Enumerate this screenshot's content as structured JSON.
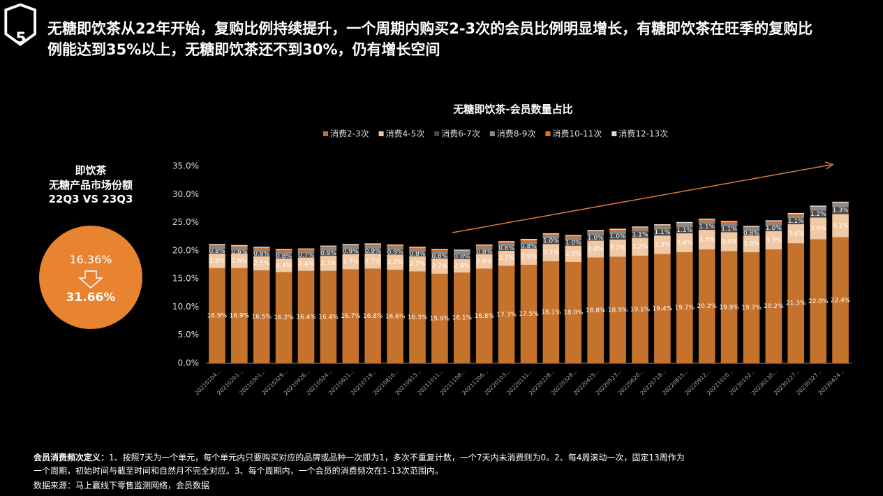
{
  "header": {
    "title": "无糖即饮茶从22年开始，复购比例持续提升，一个周期内购买2-3次的会员比例明显增长，有糖即饮茶在旺季的复购比例能达到35%以上，无糖即饮茶还不到30%，仍有增长空间"
  },
  "side": {
    "line1": "即饮茶",
    "line2": "无糖产品市场份额",
    "line3": "22Q3 VS 23Q3",
    "from": "16.36%",
    "to": "31.66%"
  },
  "chart_data": {
    "type": "stacked_bar",
    "title": "无糖即饮茶-会员数量占比",
    "categories": [
      "20210104...",
      "20210201...",
      "20210301...",
      "20210329...",
      "20210426...",
      "20210524...",
      "20210621...",
      "20210719...",
      "20210816...",
      "20210913...",
      "20211011...",
      "20211108...",
      "20211206...",
      "20220103...",
      "20220131...",
      "20220228...",
      "20220328...",
      "20220425...",
      "20220523...",
      "20220620...",
      "20220718...",
      "20220815...",
      "20220912...",
      "20221010...",
      "20230102...",
      "20230130...",
      "20230227...",
      "20230327...",
      "20230424..."
    ],
    "series": [
      {
        "name": "消费2-3次",
        "color": "#c5722d",
        "values": [
          16.9,
          16.9,
          16.5,
          16.2,
          16.4,
          16.4,
          16.7,
          16.8,
          16.6,
          16.3,
          15.9,
          16.1,
          16.8,
          17.3,
          17.5,
          18.1,
          18.0,
          18.8,
          18.9,
          19.1,
          19.4,
          19.7,
          20.2,
          19.9,
          19.7,
          20.2,
          21.3,
          22.0,
          22.4
        ],
        "value_labels": [
          "16.9%",
          "16.9%",
          "16.5%",
          "16.2%",
          "16.4%",
          "16.4%",
          "16.7%",
          "16.8%",
          "16.6%",
          "16.3%",
          "15.9%",
          "16.1%",
          "16.8%",
          "17.3%",
          "17.5%",
          "18.1%",
          "18.0%",
          "18.8%",
          "18.9%",
          "19.1%",
          "19.4%",
          "19.7%",
          "20.2%",
          "19.9%",
          "19.7%",
          "20.2%",
          "21.3%",
          "22.0%",
          "22.4%"
        ]
      },
      {
        "name": "消费4-5次",
        "color": "#f2c9a5",
        "values": [
          2.6,
          2.6,
          2.5,
          2.4,
          2.4,
          2.7,
          2.7,
          2.7,
          2.7,
          2.7,
          2.7,
          2.4,
          2.6,
          2.7,
          2.9,
          3.1,
          2.9,
          3.0,
          3.1,
          3.2,
          3.3,
          3.4,
          3.5,
          3.4,
          3.0,
          3.3,
          3.4,
          3.9,
          4.1
        ],
        "value_labels": [
          "2.6%",
          "2.6%",
          "2.5%",
          "2.4%",
          "2.4%",
          "2.7%",
          "2.7%",
          "2.7%",
          "2.7%",
          "2.7%",
          "2.7%",
          "2.4%",
          "2.6%",
          "2.7%",
          "2.9%",
          "3.1%",
          "2.9%",
          "3.0%",
          "3.1%",
          "3.2%",
          "3.3%",
          "3.4%",
          "3.5%",
          "3.4%",
          "3.0%",
          "3.3%",
          "3.4%",
          "3.9%",
          "4.1%"
        ]
      },
      {
        "name": "消费6-7次",
        "color": "#4a4a4a",
        "values": [
          0.8,
          0.6,
          0.8,
          0.8,
          0.7,
          0.9,
          0.9,
          0.9,
          0.9,
          0.8,
          0.8,
          0.8,
          0.8,
          0.8,
          0.8,
          1.0,
          1.0,
          1.0,
          1.0,
          1.1,
          1.1,
          1.1,
          1.1,
          1.1,
          0.8,
          1.0,
          1.1,
          1.2,
          1.3
        ],
        "value_labels": [
          "0.8%",
          "0.6%",
          "0.8%",
          "0.8%",
          "0.7%",
          "0.9%",
          "0.9%",
          "0.9%",
          "0.9%",
          "0.8%",
          "0.8%",
          "0.8%",
          "0.8%",
          "0.8%",
          "0.8%",
          "1.0%",
          "1.0%",
          "1.0%",
          "1.0%",
          "1.1%",
          "1.1%",
          "1.1%",
          "1.1%",
          "1.1%",
          "0.8%",
          "1.0%",
          "1.1%",
          "1.2%",
          "1.3%"
        ]
      },
      {
        "name": "消费8-9次",
        "color": "#8a8a8a",
        "values": [
          0.5,
          0.5,
          0.5,
          0.5,
          0.5,
          0.5,
          0.5,
          0.5,
          0.5,
          0.5,
          0.5,
          0.5,
          0.5,
          0.5,
          0.5,
          0.5,
          0.5,
          0.5,
          0.5,
          0.5,
          0.5,
          0.5,
          0.5,
          0.5,
          0.5,
          0.5,
          0.5,
          0.5,
          0.5
        ]
      },
      {
        "name": "消费10-11次",
        "color": "#e8701f",
        "values": [
          0.2,
          0.2,
          0.2,
          0.2,
          0.2,
          0.2,
          0.2,
          0.2,
          0.2,
          0.2,
          0.2,
          0.2,
          0.2,
          0.2,
          0.2,
          0.2,
          0.2,
          0.2,
          0.2,
          0.2,
          0.2,
          0.2,
          0.2,
          0.2,
          0.2,
          0.2,
          0.2,
          0.2,
          0.2
        ]
      },
      {
        "name": "消费12-13次",
        "color": "#d8d8d8",
        "values": [
          0.2,
          0.2,
          0.2,
          0.2,
          0.2,
          0.2,
          0.2,
          0.2,
          0.2,
          0.2,
          0.2,
          0.2,
          0.2,
          0.2,
          0.2,
          0.2,
          0.2,
          0.2,
          0.2,
          0.2,
          0.2,
          0.2,
          0.2,
          0.2,
          0.2,
          0.2,
          0.2,
          0.2,
          0.2
        ]
      }
    ],
    "ylim": [
      0,
      35
    ],
    "yticks": [
      {
        "value": 0,
        "label": "0.0%"
      },
      {
        "value": 5,
        "label": "5.0%"
      },
      {
        "value": 10,
        "label": "10.0%"
      },
      {
        "value": 15,
        "label": "15.0%"
      },
      {
        "value": 20,
        "label": "20.0%"
      },
      {
        "value": 25,
        "label": "25.0%"
      },
      {
        "value": 30,
        "label": "30.0%"
      },
      {
        "value": 35,
        "label": "35.0%"
      }
    ],
    "grid": false,
    "legend": "top"
  },
  "footer": {
    "label": "会员消费频次定义：",
    "text": "1、按照7天为一个单元，每个单元内只要购买对应的品牌或品种一次即为1，多次不重复计数，一个7天内未消费则为0。2、每4周滚动一次，固定13周作为一个周期，初始时间与截至时间和自然月不完全对应。3、每个周期内，一个会员的消费频次在1-13次范围内。",
    "source": "数据来源：马上赢线下零售监测网络，会员数据"
  }
}
